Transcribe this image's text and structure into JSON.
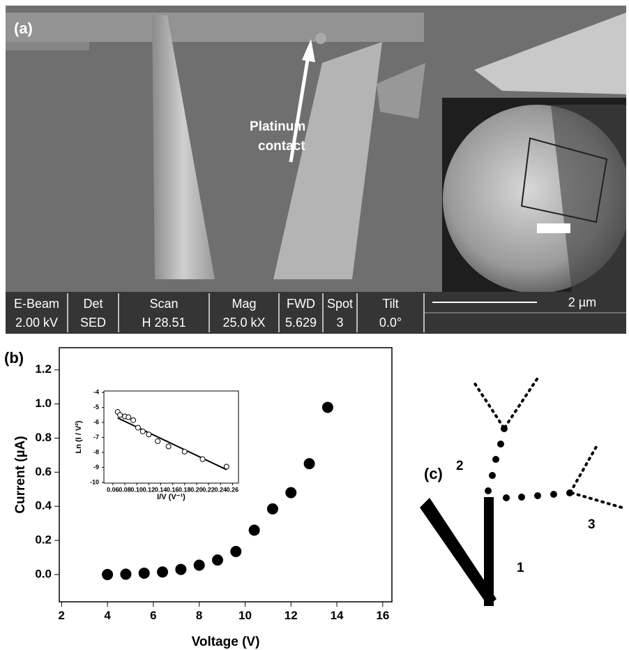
{
  "panel_a": {
    "label": "(a)",
    "annotation": [
      "Platinum",
      "contact"
    ],
    "sem_info": [
      {
        "label": "E-Beam",
        "value": "2.00 kV"
      },
      {
        "label": "Det",
        "value": "SED"
      },
      {
        "label": "Scan",
        "value": "H 28.51"
      },
      {
        "label": "Mag",
        "value": "25.0 kX"
      },
      {
        "label": "FWD",
        "value": "5.629"
      },
      {
        "label": "Spot",
        "value": "3"
      },
      {
        "label": "Tilt",
        "value": "0.0°"
      }
    ],
    "scale_bar": "2 µm"
  },
  "panel_b": {
    "label": "(b)"
  },
  "panel_c": {
    "label": "(c)",
    "labels": [
      "1",
      "2",
      "3"
    ]
  },
  "chart_data": [
    {
      "type": "scatter",
      "x_label": "Voltage (V)",
      "y_label": "Current (µA)",
      "x": [
        4,
        4.8,
        5.6,
        6.4,
        7.2,
        8,
        8.8,
        9.6,
        10.4,
        11.2,
        12,
        12.8,
        13.6
      ],
      "values": [
        0.0,
        0.002,
        0.008,
        0.015,
        0.03,
        0.055,
        0.085,
        0.135,
        0.26,
        0.385,
        0.48,
        0.65,
        0.98
      ],
      "color": "#000000",
      "marker": "filled",
      "xlim": [
        1.9,
        16.4
      ],
      "ylim": [
        -0.16,
        1.33
      ],
      "xticks": [
        2,
        4,
        6,
        8,
        10,
        12,
        14,
        16
      ],
      "yticks": [
        {
          "value": 0,
          "label": "0.0"
        },
        0.2,
        0.4,
        0.6,
        0.8,
        {
          "value": 1,
          "label": "1.0"
        },
        1.2
      ]
    },
    {
      "type": "scatter",
      "x_label": "I/V (V⁻¹)",
      "y_label": "Ln (I / V²)",
      "x": [
        0.068,
        0.072,
        0.08,
        0.086,
        0.094,
        0.102,
        0.11,
        0.12,
        0.135,
        0.153,
        0.18,
        0.21,
        0.25
      ],
      "values": [
        -5.3,
        -5.5,
        -5.6,
        -5.65,
        -5.85,
        -6.35,
        -6.6,
        -6.8,
        -7.25,
        -7.6,
        -7.95,
        -8.45,
        -8.95
      ],
      "color": "#000000",
      "marker": "open",
      "fit": {
        "x": [
          0.068,
          0.25
        ],
        "values": [
          -5.7,
          -9.15
        ]
      },
      "xlim": [
        0.045,
        0.27
      ],
      "ylim": [
        -10.05,
        -3.9
      ],
      "xticks": [
        0.06,
        0.08,
        {
          "value": 0.1,
          "label": "0.10"
        },
        0.12,
        0.14,
        0.16,
        0.18,
        {
          "value": 0.2,
          "label": "0.20"
        },
        0.22,
        0.24,
        0.26
      ],
      "yticks": [
        -10,
        -9,
        -8,
        -7,
        -6,
        -5,
        -4
      ]
    }
  ]
}
